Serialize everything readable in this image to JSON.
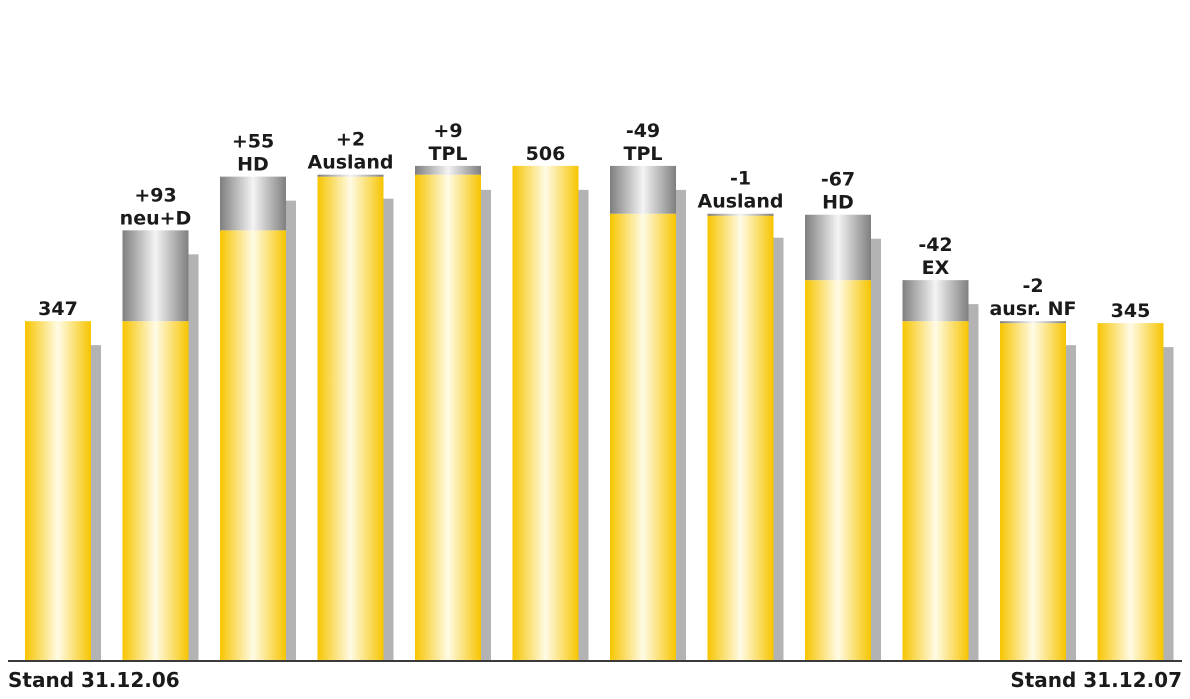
{
  "chart_data": {
    "type": "bar",
    "subtype": "waterfall",
    "baseline": 347,
    "ylim": [
      0,
      560
    ],
    "steps": [
      {
        "kind": "total",
        "value": 347,
        "label_lines": [
          "347"
        ]
      },
      {
        "kind": "delta",
        "value": 93,
        "label_lines": [
          "+93",
          "neu+D"
        ]
      },
      {
        "kind": "delta",
        "value": 55,
        "label_lines": [
          "+55",
          "HD"
        ]
      },
      {
        "kind": "delta",
        "value": 2,
        "label_lines": [
          "+2",
          "Ausland"
        ]
      },
      {
        "kind": "delta",
        "value": 9,
        "label_lines": [
          "+9",
          "TPL"
        ]
      },
      {
        "kind": "total",
        "value": 506,
        "label_lines": [
          "506"
        ]
      },
      {
        "kind": "delta",
        "value": -49,
        "label_lines": [
          "-49",
          "TPL"
        ]
      },
      {
        "kind": "delta",
        "value": -1,
        "label_lines": [
          "-1",
          "Ausland"
        ]
      },
      {
        "kind": "delta",
        "value": -67,
        "label_lines": [
          "-67",
          "HD"
        ]
      },
      {
        "kind": "delta",
        "value": -42,
        "label_lines": [
          "-42",
          "EX"
        ]
      },
      {
        "kind": "delta",
        "value": -2,
        "label_lines": [
          "-2",
          "ausr. NF"
        ]
      },
      {
        "kind": "total",
        "value": 345,
        "label_lines": [
          "345"
        ]
      }
    ],
    "colors": {
      "yellow_edge": "#f7c500",
      "yellow_highlight": "#fffbe6",
      "gray_edge": "#7f7f7f",
      "gray_highlight": "#f4f4f4",
      "shadow": "#b3b3b3",
      "axis": "#3a3a3a",
      "text": "#1a1a1a"
    },
    "legend": "none",
    "grid": false
  },
  "footer": {
    "left": "Stand 31.12.06",
    "right": "Stand 31.12.07"
  }
}
